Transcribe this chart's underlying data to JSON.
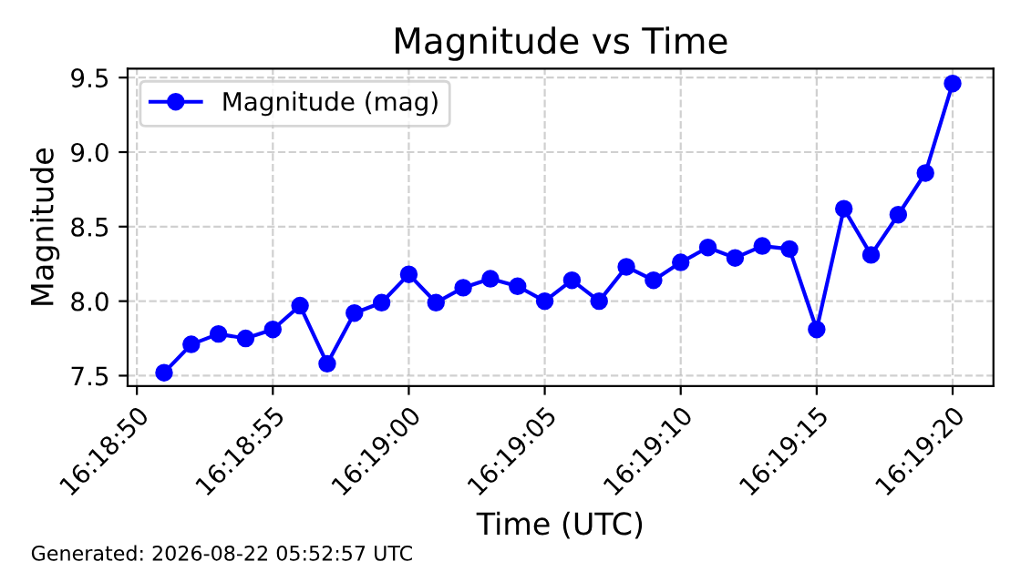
{
  "chart_data": {
    "type": "line",
    "title": "Magnitude vs Time",
    "xlabel": "Time (UTC)",
    "ylabel": "Magnitude",
    "x": [
      16.3141667,
      16.3144444,
      16.3147222,
      16.315,
      16.3152778,
      16.3155556,
      16.3158333,
      16.3161111,
      16.3163889,
      16.3166667,
      16.3169444,
      16.3172222,
      16.3175,
      16.3177778,
      16.3180556,
      16.3183333,
      16.3186111,
      16.3188889,
      16.3191667,
      16.3194444,
      16.3197222,
      16.32,
      16.3202778,
      16.3205556,
      16.3208333,
      16.3211111,
      16.3213889,
      16.3216667,
      16.3219444,
      16.3222222
    ],
    "series": [
      {
        "name": "Magnitude (mag)",
        "color": "#0000ff",
        "values": [
          7.52,
          7.71,
          7.78,
          7.75,
          7.81,
          7.97,
          7.58,
          7.92,
          7.99,
          8.18,
          7.99,
          8.09,
          8.15,
          8.1,
          8.0,
          8.14,
          8.0,
          8.23,
          8.14,
          8.26,
          8.36,
          8.29,
          8.37,
          8.35,
          7.81,
          8.62,
          8.31,
          8.58,
          8.86,
          9.46
        ]
      }
    ],
    "xlim": [
      16.3137944,
      16.3226389
    ],
    "xticks": [
      {
        "value": 16.3138889,
        "label": "16:18:50"
      },
      {
        "value": 16.3152778,
        "label": "16:18:55"
      },
      {
        "value": 16.3166667,
        "label": "16:19:00"
      },
      {
        "value": 16.3180556,
        "label": "16:19:05"
      },
      {
        "value": 16.3194444,
        "label": "16:19:10"
      },
      {
        "value": 16.3208333,
        "label": "16:19:15"
      },
      {
        "value": 16.3222222,
        "label": "16:19:20"
      }
    ],
    "ylim": [
      7.43,
      9.56
    ],
    "yticks": [
      7.5,
      {
        "value": 8,
        "label": "8.0"
      },
      8.5,
      {
        "value": 9,
        "label": "9.0"
      },
      9.5
    ],
    "grid": true,
    "legend": "top left",
    "marker": "circle",
    "line_style": "solid",
    "annotations": [
      "Generated: 2026-08-22 05:52:57 UTC"
    ]
  }
}
